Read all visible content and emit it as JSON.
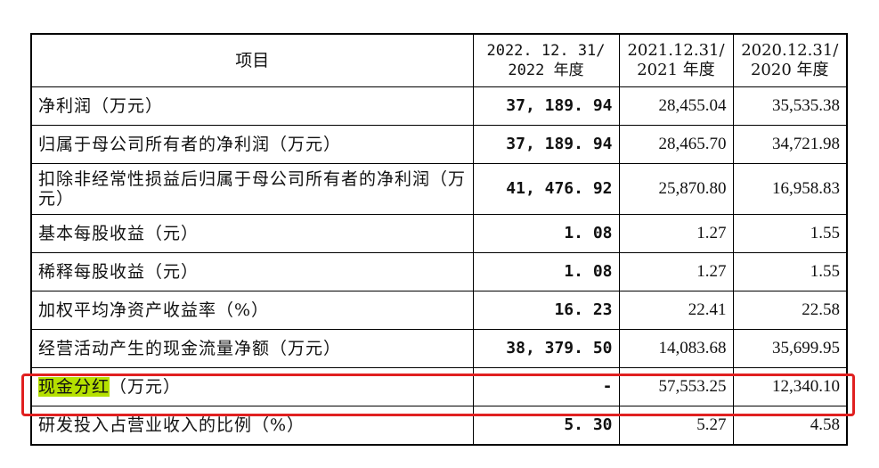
{
  "header": {
    "item": "项目",
    "col1_line1": "2022. 12. 31/",
    "col1_line2": "2022 年度",
    "col2_line1": "2021.12.31/",
    "col2_line2": "2021 年度",
    "col3_line1": "2020.12.31/",
    "col3_line2": "2020 年度"
  },
  "rows": [
    {
      "label": "净利润（万元）",
      "v2022": "37, 189. 94",
      "v2021": "28,455.04",
      "v2020": "35,535.38"
    },
    {
      "label": "归属于母公司所有者的净利润（万元）",
      "v2022": "37, 189. 94",
      "v2021": "28,465.70",
      "v2020": "34,721.98"
    },
    {
      "label": "扣除非经常性损益后归属于母公司所有者的净利润（万元）",
      "v2022": "41, 476. 92",
      "v2021": "25,870.80",
      "v2020": "16,958.83"
    },
    {
      "label": "基本每股收益（元）",
      "v2022": "1. 08",
      "v2021": "1.27",
      "v2020": "1.55"
    },
    {
      "label": "稀释每股收益（元）",
      "v2022": "1. 08",
      "v2021": "1.27",
      "v2020": "1.55"
    },
    {
      "label": "加权平均净资产收益率（%）",
      "v2022": "16. 23",
      "v2021": "22.41",
      "v2020": "22.58"
    },
    {
      "label": "经营活动产生的现金流量净额（万元）",
      "v2022": "38, 379. 50",
      "v2021": "14,083.68",
      "v2020": "35,699.95"
    },
    {
      "label_highlight": "现金分红",
      "label_rest": "（万元）",
      "v2022": "-",
      "v2021": "57,553.25",
      "v2020": "12,340.10"
    },
    {
      "label": "研发投入占营业收入的比例（%）",
      "v2022": "5. 30",
      "v2021": "5.27",
      "v2020": "4.58"
    }
  ],
  "colors": {
    "highlight": "#b5e000",
    "annotation_box": "#e02020"
  }
}
